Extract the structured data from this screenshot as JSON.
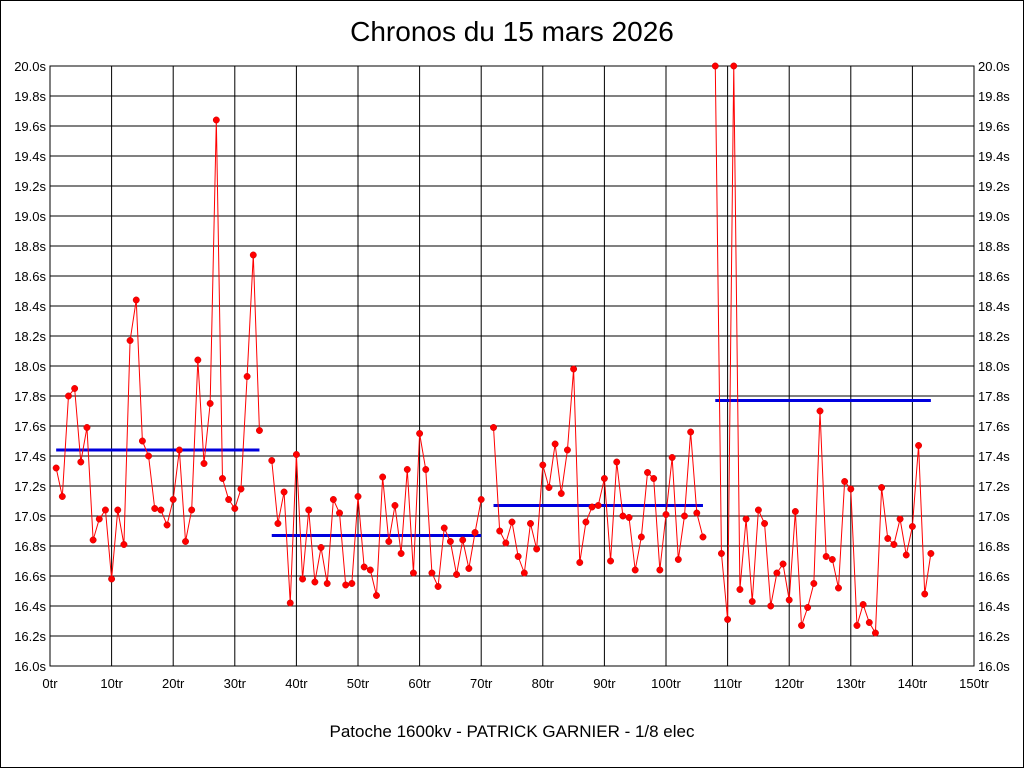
{
  "chart_data": {
    "type": "line",
    "title": "Chronos du 15 mars 2026",
    "subtitle": "Patoche 1600kv - PATRICK GARNIER - 1/8 elec",
    "x_ticks": [
      "0tr",
      "10tr",
      "20tr",
      "30tr",
      "40tr",
      "50tr",
      "60tr",
      "70tr",
      "80tr",
      "90tr",
      "100tr",
      "110tr",
      "120tr",
      "130tr",
      "140tr",
      "150tr"
    ],
    "y_ticks": [
      "16.0s",
      "16.2s",
      "16.4s",
      "16.6s",
      "16.8s",
      "17.0s",
      "17.2s",
      "17.4s",
      "17.6s",
      "17.8s",
      "18.0s",
      "18.2s",
      "18.4s",
      "18.6s",
      "18.8s",
      "19.0s",
      "19.2s",
      "19.4s",
      "19.6s",
      "19.8s",
      "20.0s"
    ],
    "xlim": [
      0,
      150
    ],
    "ylim": [
      16.0,
      20.0
    ],
    "grid": true,
    "colors": {
      "laps": "#ff0000",
      "average": "#0000dd",
      "grid": "#000000"
    },
    "series": [
      {
        "segment": 1,
        "laps": [
          1,
          2,
          3,
          4,
          5,
          6,
          7,
          8,
          9,
          10,
          11,
          12,
          13,
          14,
          15,
          16,
          17,
          18,
          19,
          20,
          21,
          22,
          23,
          24,
          25,
          26,
          27,
          28,
          29,
          30,
          31,
          32,
          33,
          34
        ],
        "times": [
          17.32,
          17.13,
          17.8,
          17.85,
          17.36,
          17.59,
          16.84,
          16.98,
          17.04,
          16.58,
          17.04,
          16.81,
          18.17,
          18.44,
          17.5,
          17.4,
          17.05,
          17.04,
          16.94,
          17.11,
          17.44,
          16.83,
          17.04,
          18.04,
          17.35,
          17.75,
          19.64,
          17.25,
          17.11,
          17.05,
          17.18,
          17.93,
          18.74,
          17.57
        ]
      },
      {
        "segment": 2,
        "laps": [
          36,
          37,
          38,
          39,
          40,
          41,
          42,
          43,
          44,
          45,
          46,
          47,
          48,
          49,
          50,
          51,
          52,
          53,
          54,
          55,
          56,
          57,
          58,
          59,
          60,
          61,
          62,
          63,
          64,
          65,
          66,
          67,
          68,
          69,
          70
        ],
        "times": [
          17.37,
          16.95,
          17.16,
          16.42,
          17.41,
          16.58,
          17.04,
          16.56,
          16.79,
          16.55,
          17.11,
          17.02,
          16.54,
          16.55,
          17.13,
          16.66,
          16.64,
          16.47,
          17.26,
          16.83,
          17.07,
          16.75,
          17.31,
          16.62,
          17.55,
          17.31,
          16.62,
          16.53,
          16.92,
          16.83,
          16.61,
          16.84,
          16.65,
          16.89,
          17.11
        ]
      },
      {
        "segment": 3,
        "laps": [
          72,
          73,
          74,
          75,
          76,
          77,
          78,
          79,
          80,
          81,
          82,
          83,
          84,
          85,
          86,
          87,
          88,
          89,
          90,
          91,
          92,
          93,
          94,
          95,
          96,
          97,
          98,
          99,
          100,
          101,
          102,
          103,
          104,
          105,
          106
        ],
        "times": [
          17.59,
          16.9,
          16.82,
          16.96,
          16.73,
          16.62,
          16.95,
          16.78,
          17.34,
          17.19,
          17.48,
          17.15,
          17.44,
          17.98,
          16.69,
          16.96,
          17.06,
          17.07,
          17.25,
          16.7,
          17.36,
          17.0,
          16.99,
          16.64,
          16.86,
          17.29,
          17.25,
          16.64,
          17.01,
          17.39,
          16.71,
          17.0,
          17.56,
          17.02,
          16.86
        ]
      },
      {
        "segment": 4,
        "laps": [
          108,
          109,
          110,
          111,
          112,
          113,
          114,
          115,
          116,
          117,
          118,
          119,
          120,
          121,
          122,
          123,
          124,
          125,
          126,
          127,
          128,
          129,
          130,
          131,
          132,
          133,
          134,
          135,
          136,
          137,
          138,
          139,
          140,
          141,
          142,
          143
        ],
        "times": [
          20.0,
          16.75,
          16.31,
          20.0,
          16.51,
          16.98,
          16.43,
          17.04,
          16.95,
          16.4,
          16.62,
          16.68,
          16.44,
          17.03,
          16.27,
          16.39,
          16.55,
          17.7,
          16.73,
          16.71,
          16.52,
          17.23,
          17.18,
          16.27,
          16.41,
          16.29,
          16.22,
          17.19,
          16.85,
          16.81,
          16.98,
          16.74,
          16.93,
          17.47,
          16.48,
          16.75
        ]
      }
    ],
    "averages": [
      {
        "x_start": 1,
        "x_end": 34,
        "value": 17.44
      },
      {
        "x_start": 36,
        "x_end": 70,
        "value": 16.87
      },
      {
        "x_start": 72,
        "x_end": 106,
        "value": 17.07
      },
      {
        "x_start": 108,
        "x_end": 143,
        "value": 17.77
      }
    ]
  }
}
